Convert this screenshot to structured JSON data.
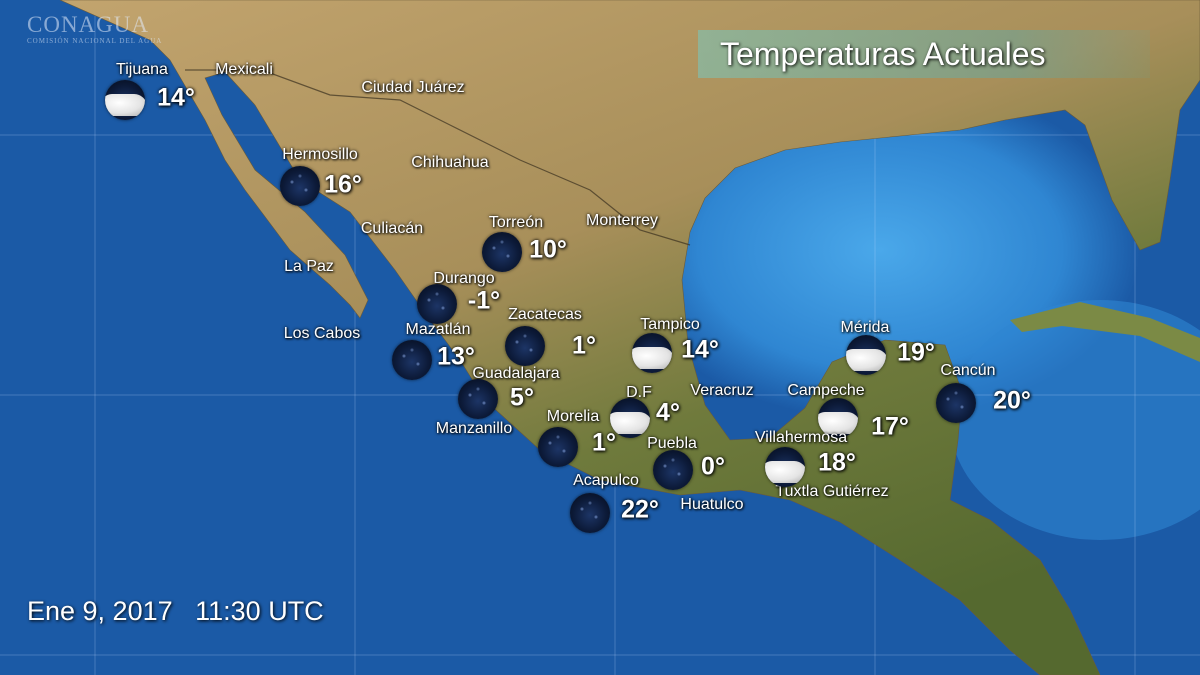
{
  "logo": {
    "name": "CONAGUA",
    "subtitle": "COMISIÓN NACIONAL DEL AGUA"
  },
  "title": "Temperaturas Actuales",
  "timestamp": "Ene 9, 2017   11:30 UTC",
  "colors": {
    "ocean": "#1b5aa6",
    "gulf": "#3b9be0",
    "land": "#b59a63",
    "land_south": "#6f7a3c",
    "text": "#ffffff"
  },
  "cities": [
    {
      "name": "Tijuana",
      "temp": "14°",
      "icon": "partly-cloudy-night-icon"
    },
    {
      "name": "Hermosillo",
      "temp": "16°",
      "icon": "clear-night-icon"
    },
    {
      "name": "Torreón",
      "temp": "10°",
      "icon": "clear-night-icon"
    },
    {
      "name": "Durango",
      "temp": "-1°",
      "icon": "clear-night-icon"
    },
    {
      "name": "Zacatecas",
      "temp": "1°",
      "icon": "clear-night-icon"
    },
    {
      "name": "Mazatlán",
      "temp": "13°",
      "icon": "clear-night-icon"
    },
    {
      "name": "Tampico",
      "temp": "14°",
      "icon": "partly-cloudy-night-icon"
    },
    {
      "name": "Mérida",
      "temp": "19°",
      "icon": "partly-cloudy-night-icon"
    },
    {
      "name": "Cancún",
      "temp": "20°",
      "icon": "clear-night-icon"
    },
    {
      "name": "Guadalajara",
      "temp": "5°",
      "icon": "clear-night-icon"
    },
    {
      "name": "D.F",
      "temp": "4°",
      "icon": "partly-cloudy-night-icon"
    },
    {
      "name": "Campeche",
      "temp": "17°",
      "icon": "partly-cloudy-night-icon"
    },
    {
      "name": "Morelia",
      "temp": "1°",
      "icon": "clear-night-icon"
    },
    {
      "name": "Puebla",
      "temp": "0°",
      "icon": "clear-night-icon"
    },
    {
      "name": "Villahermosa",
      "temp": "18°",
      "icon": "partly-cloudy-night-icon"
    },
    {
      "name": "Acapulco",
      "temp": "22°",
      "icon": "clear-night-icon"
    }
  ],
  "places": [
    "Mexicali",
    "Ciudad Juárez",
    "Chihuahua",
    "Culiacán",
    "Monterrey",
    "La Paz",
    "Los Cabos",
    "Veracruz",
    "Manzanillo",
    "Huatulco",
    "Tuxtla Gutiérrez"
  ]
}
